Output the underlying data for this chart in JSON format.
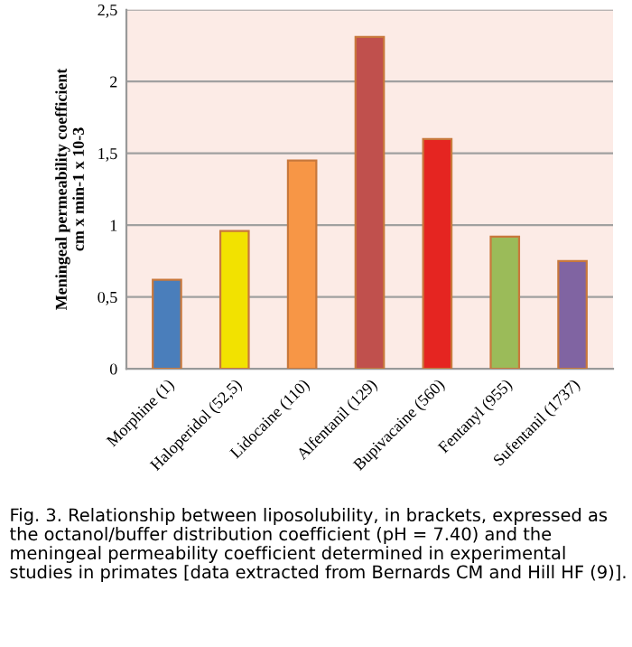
{
  "chart_data": {
    "type": "bar",
    "ylabel": "Meningeal permeability coefficient\ncm x min-1 x 10-3",
    "categories": [
      "Morphine (1)",
      "Haloperidol (52,5)",
      "Lidocaine (110)",
      "Alfentanil (129)",
      "Bupivacaine (560)",
      "Fentanyl (955)",
      "Sufentanil (1737)"
    ],
    "values": [
      0.62,
      0.96,
      1.45,
      2.31,
      1.6,
      0.92,
      0.75
    ],
    "colors": [
      "#4a7ebb",
      "#f2e200",
      "#f79646",
      "#c0504d",
      "#e52521",
      "#9bbb59",
      "#8064a2"
    ],
    "ylim": [
      0,
      2.5
    ],
    "yticks": [
      {
        "value": 0,
        "label": "0"
      },
      {
        "value": 0.5,
        "label": "0,5"
      },
      {
        "value": 1,
        "label": "1"
      },
      {
        "value": 1.5,
        "label": "1,5"
      },
      {
        "value": 2,
        "label": "2"
      },
      {
        "value": 2.5,
        "label": "2,5"
      }
    ],
    "grid": "y",
    "annotations": [
      "Fig. 3. Relationship between liposolubility, in brackets, expressed as the octanol/buffer distribution coefficient (pH = 7.40) and the meningeal permeability coefficient determined in experimental studies in primates [data extracted from Bernards CM and Hill HF (9)]."
    ]
  }
}
